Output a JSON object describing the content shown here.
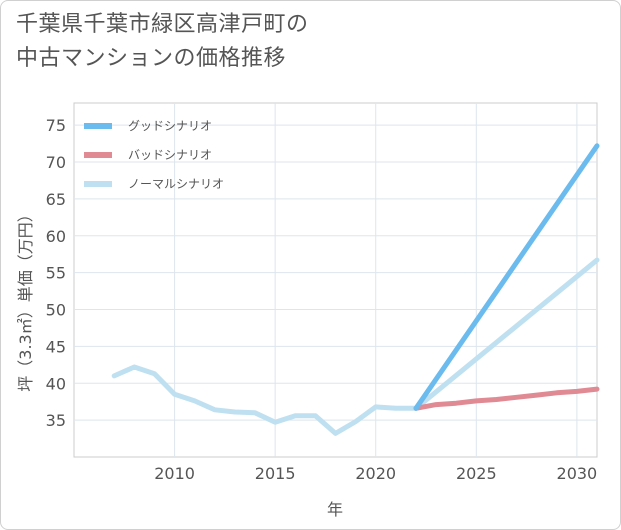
{
  "chart_data": {
    "type": "line",
    "title": [
      "千葉県千葉市緑区高津戸町の",
      "中古マンションの価格推移"
    ],
    "xlabel": "年",
    "ylabel": "坪（3.3㎡）単価（万円）",
    "xlim": [
      2005,
      2031
    ],
    "ylim": [
      30,
      78
    ],
    "xticks": [
      2010,
      2015,
      2020,
      2025,
      2030
    ],
    "yticks": [
      35,
      40,
      45,
      50,
      55,
      60,
      65,
      70,
      75
    ],
    "grid": true,
    "legend_position": "top-left",
    "history": {
      "x": [
        2007,
        2008,
        2009,
        2010,
        2011,
        2012,
        2013,
        2014,
        2015,
        2016,
        2017,
        2018,
        2019,
        2020,
        2021,
        2022
      ],
      "values": [
        41.0,
        42.2,
        41.3,
        38.5,
        37.6,
        36.4,
        36.1,
        36.0,
        34.7,
        35.6,
        35.6,
        33.2,
        34.8,
        36.8,
        36.6,
        36.6
      ]
    },
    "series": [
      {
        "name": "グッドシナリオ",
        "color": "#6bbbee",
        "x": [
          2022,
          2031
        ],
        "values": [
          36.6,
          72.2
        ]
      },
      {
        "name": "バッドシナリオ",
        "color": "#e08a94",
        "x": [
          2022,
          2023,
          2024,
          2025,
          2026,
          2027,
          2028,
          2029,
          2030,
          2031
        ],
        "values": [
          36.6,
          37.1,
          37.3,
          37.6,
          37.8,
          38.1,
          38.4,
          38.7,
          38.9,
          39.2
        ]
      },
      {
        "name": "ノーマルシナリオ",
        "color": "#bfe0f0",
        "x": [
          2022,
          2031
        ],
        "values": [
          36.6,
          56.7
        ]
      }
    ]
  }
}
